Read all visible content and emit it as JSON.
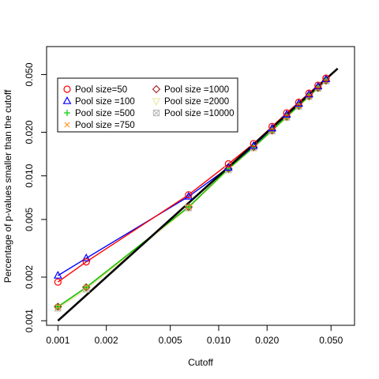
{
  "chart_data": {
    "type": "line",
    "title": "",
    "xlabel": "Cutoff",
    "ylabel": "Percentage of p-values smaller than the cutoff",
    "xscale": "log",
    "yscale": "log",
    "xlim": [
      0.00085,
      0.07
    ],
    "ylim": [
      0.00093,
      0.078
    ],
    "x_ticks": [
      0.001,
      0.002,
      0.005,
      0.01,
      0.02,
      0.05
    ],
    "x_tick_labels": [
      "0.001",
      "0.002",
      "0.005",
      "0.010",
      "0.020",
      "0.050"
    ],
    "y_ticks": [
      0.001,
      0.002,
      0.005,
      0.01,
      0.02,
      0.05
    ],
    "y_tick_labels": [
      "0.001",
      "0.002",
      "0.005",
      "0.010",
      "0.020",
      "0.050"
    ],
    "grid": false,
    "legend": {
      "placement": "top-left",
      "columns": 2
    },
    "x": [
      0.001,
      0.0015,
      0.0065,
      0.0115,
      0.0165,
      0.0215,
      0.0265,
      0.0315,
      0.0365,
      0.0415,
      0.0465
    ],
    "series": [
      {
        "name": "Pool size=50",
        "color": "#ff0000",
        "marker": "circle",
        "values": [
          0.00185,
          0.00255,
          0.0074,
          0.0121,
          0.0167,
          0.0219,
          0.0272,
          0.0322,
          0.0372,
          0.0422,
          0.0472
        ]
      },
      {
        "name": "Pool size =100",
        "color": "#0000ff",
        "marker": "triangle",
        "values": [
          0.00205,
          0.0027,
          0.0072,
          0.0114,
          0.0161,
          0.0213,
          0.0265,
          0.0315,
          0.0365,
          0.0415,
          0.0465
        ]
      },
      {
        "name": "Pool size =500",
        "color": "#00cd00",
        "marker": "plus",
        "values": [
          0.00125,
          0.0017,
          0.0061,
          0.0112,
          0.0158,
          0.0206,
          0.0256,
          0.0305,
          0.0355,
          0.0405,
          0.0455
        ]
      },
      {
        "name": "Pool size =750",
        "color": "#ff9a2e",
        "marker": "cross",
        "values": [
          0.00125,
          0.0017,
          0.0061,
          0.0112,
          0.0158,
          0.0206,
          0.0256,
          0.0305,
          0.0355,
          0.0405,
          0.0455
        ]
      },
      {
        "name": "Pool size =1000",
        "color": "#a52a2a",
        "marker": "diamond",
        "values": [
          0.00125,
          0.0017,
          0.0061,
          0.0112,
          0.0158,
          0.0206,
          0.0256,
          0.0305,
          0.0355,
          0.0405,
          0.0455
        ]
      },
      {
        "name": "Pool size =2000",
        "color": "#eee8aa",
        "marker": "triangle-down",
        "values": [
          0.00122,
          0.00165,
          0.006,
          0.011,
          0.0156,
          0.0204,
          0.0253,
          0.0302,
          0.0352,
          0.0402,
          0.0452
        ]
      },
      {
        "name": "Pool size =10000",
        "color": "#bebebe",
        "marker": "square-cross",
        "values": [
          0.00122,
          0.00165,
          0.006,
          0.011,
          0.0156,
          0.0204,
          0.0253,
          0.0302,
          0.0352,
          0.0402,
          0.0452
        ]
      }
    ],
    "reference_line": {
      "color": "#000000",
      "x": [
        0.001,
        0.055
      ],
      "y": [
        0.001,
        0.055
      ]
    }
  }
}
